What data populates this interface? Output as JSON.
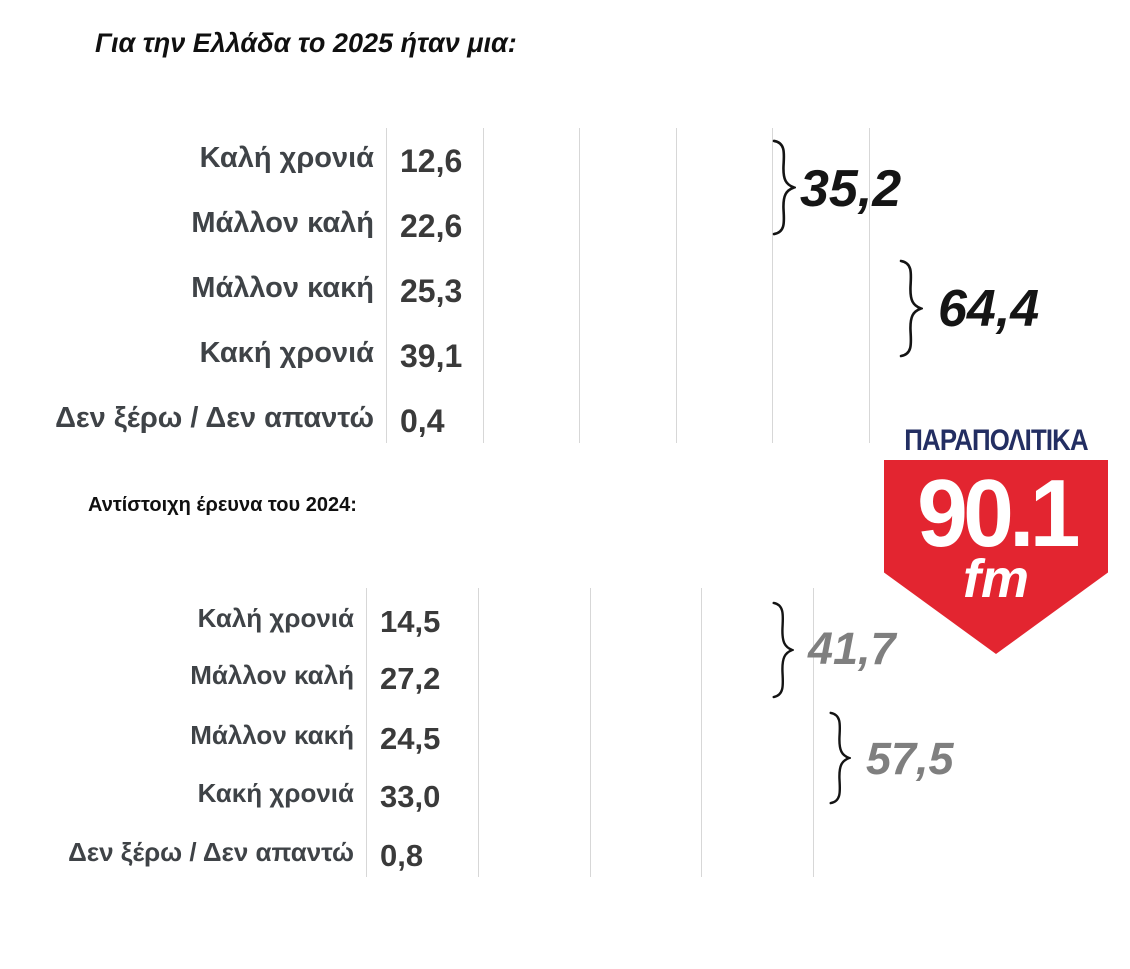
{
  "chart_data": [
    {
      "type": "bar",
      "orientation": "horizontal",
      "title": "Για την Ελλάδα το 2025 ήταν μια:",
      "categories": [
        "Καλή χρονιά",
        "Μάλλον καλή",
        "Μάλλον κακή",
        "Κακή χρονιά",
        "Δεν ξέρω / Δεν απαντώ"
      ],
      "values": [
        12.6,
        22.6,
        25.3,
        39.1,
        0.4
      ],
      "value_labels": [
        "12,6",
        "22,6",
        "25,3",
        "39,1",
        "0,4"
      ],
      "xlim": [
        0,
        50
      ],
      "gridline_step": 10,
      "grid": true,
      "data_labels": true,
      "bar_color": "#3f68c0",
      "label_color": "#3f4347",
      "groups": [
        {
          "label": "35,2",
          "value": 35.2,
          "categories": [
            "Καλή χρονιά",
            "Μάλλον καλή"
          ],
          "color": "#151515"
        },
        {
          "label": "64,4",
          "value": 64.4,
          "categories": [
            "Μάλλον κακή",
            "Κακή χρονιά"
          ],
          "color": "#151515"
        }
      ]
    },
    {
      "type": "bar",
      "orientation": "horizontal",
      "title": "Αντίστοιχη έρευνα του 2024:",
      "categories": [
        "Καλή χρονιά",
        "Μάλλον καλή",
        "Μάλλον κακή",
        "Κακή χρονιά",
        "Δεν ξέρω / Δεν απαντώ"
      ],
      "values": [
        14.5,
        27.2,
        24.5,
        33.0,
        0.8
      ],
      "value_labels": [
        "14,5",
        "27,2",
        "24,5",
        "33,0",
        "0,8"
      ],
      "xlim": [
        0,
        40
      ],
      "gridline_step": 10,
      "grid": true,
      "data_labels": true,
      "bar_color": "#9cb0e2",
      "label_color": "#3f4347",
      "groups": [
        {
          "label": "41,7",
          "value": 41.7,
          "categories": [
            "Καλή χρονιά",
            "Μάλλον καλή"
          ],
          "color": "#7f7f7f"
        },
        {
          "label": "57,5",
          "value": 57.5,
          "categories": [
            "Μάλλον κακή",
            "Κακή χρονιά"
          ],
          "color": "#7f7f7f"
        }
      ]
    }
  ],
  "logo": {
    "brand": "ΠΑΡΑΠΟΛΙΤΙΚΑ",
    "frequency": "90.1",
    "band": "fm",
    "brand_color": "#232e62",
    "shield_color": "#e32530",
    "text_color": "#ffffff"
  }
}
